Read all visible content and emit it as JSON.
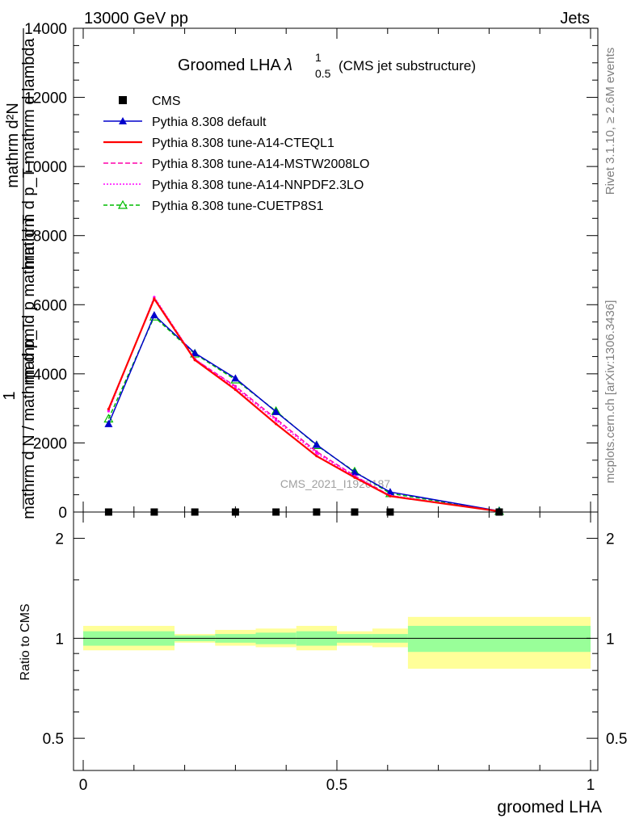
{
  "header": {
    "left": "13000 GeV pp",
    "right": "Jets"
  },
  "side_labels": {
    "rivet": "Rivet 3.1.10, ≥ 2.6M events",
    "mcplots": "mcplots.cern.ch [arXiv:1306.3436]"
  },
  "colors": {
    "cms": "#000000",
    "pythia_default": "#0000cc",
    "a14_cteql1": "#ff0000",
    "a14_mstw2008lo": "#ff00aa",
    "a14_nnpdf23lo": "#ff00ff",
    "cuetp8s1": "#00bb00",
    "band_inner": "#99ff99",
    "band_outer": "#ffff99"
  },
  "chart_data": [
    {
      "type": "line",
      "title": "Groomed LHA",
      "title_symbol": "λ",
      "title_sup": "1",
      "title_sub": "0.5",
      "title_suffix": "(CMS jet substructure)",
      "ylabel_numerator": "mathrm d²N",
      "ylabel_numerator_2": "mathrm d p_T mathrm d lambda",
      "ylabel_fraction_num": "1",
      "ylabel_denominator": "mathrm d N / mathrm d p_T",
      "ylabel_den_2": "mathrm d p mathrm d T",
      "watermark": "CMS_2021_I1920187",
      "xlim": [
        0,
        1
      ],
      "ylim": [
        0,
        14000
      ],
      "yticks": [
        0,
        2000,
        4000,
        6000,
        8000,
        10000,
        12000,
        14000
      ],
      "ytick_labels": [
        "0",
        "2000",
        "4000",
        "6000",
        "8000",
        "10000",
        "12000",
        "14000"
      ],
      "legend_position": "top-left",
      "x": [
        0.05,
        0.14,
        0.22,
        0.3,
        0.38,
        0.46,
        0.535,
        0.605,
        0.82
      ],
      "series": [
        {
          "name": "CMS",
          "style": "marker-square",
          "values": [
            0,
            0,
            0,
            0,
            0,
            0,
            0,
            0,
            0
          ]
        },
        {
          "name": "Pythia 8.308 default",
          "style": "line-triangle",
          "values": [
            2550,
            5700,
            4600,
            3870,
            2900,
            1950,
            1150,
            580,
            30
          ]
        },
        {
          "name": "Pythia 8.308 tune-A14-CTEQL1",
          "style": "solid",
          "values": [
            2980,
            6170,
            4400,
            3540,
            2550,
            1620,
            1000,
            460,
            20
          ]
        },
        {
          "name": "Pythia 8.308 tune-A14-MSTW2008LO",
          "style": "dashed",
          "values": [
            2950,
            6200,
            4420,
            3640,
            2700,
            1750,
            1050,
            470,
            20
          ]
        },
        {
          "name": "Pythia 8.308 tune-A14-NNPDF2.3LO",
          "style": "dotted",
          "values": [
            2920,
            6220,
            4430,
            3600,
            2650,
            1700,
            1030,
            480,
            20
          ]
        },
        {
          "name": "Pythia 8.308 tune-CUETP8S1",
          "style": "dashed-triangle",
          "values": [
            2700,
            5650,
            4580,
            3830,
            2920,
            1930,
            1170,
            540,
            25
          ]
        }
      ]
    },
    {
      "type": "area",
      "ylabel": "Ratio to CMS",
      "xlabel": "groomed LHA",
      "xlim": [
        0,
        1
      ],
      "ylim": [
        0.4,
        2.4
      ],
      "xticks": [
        0,
        0.5,
        1
      ],
      "xtick_labels": [
        "0",
        "0.5",
        "1"
      ],
      "yticks": [
        0.5,
        1,
        2
      ],
      "ytick_labels": [
        "0.5",
        "1",
        "2"
      ],
      "reference_line": 1,
      "bands": [
        {
          "xlo": 0.0,
          "xhi": 0.18,
          "inner": [
            0.95,
            1.05
          ],
          "outer": [
            0.92,
            1.09
          ]
        },
        {
          "xlo": 0.18,
          "xhi": 0.26,
          "inner": [
            0.98,
            1.02
          ],
          "outer": [
            0.97,
            1.03
          ]
        },
        {
          "xlo": 0.26,
          "xhi": 0.34,
          "inner": [
            0.97,
            1.03
          ],
          "outer": [
            0.95,
            1.06
          ]
        },
        {
          "xlo": 0.34,
          "xhi": 0.42,
          "inner": [
            0.96,
            1.04
          ],
          "outer": [
            0.94,
            1.07
          ]
        },
        {
          "xlo": 0.42,
          "xhi": 0.5,
          "inner": [
            0.95,
            1.05
          ],
          "outer": [
            0.92,
            1.09
          ]
        },
        {
          "xlo": 0.5,
          "xhi": 0.57,
          "inner": [
            0.97,
            1.03
          ],
          "outer": [
            0.95,
            1.05
          ]
        },
        {
          "xlo": 0.57,
          "xhi": 0.64,
          "inner": [
            0.97,
            1.03
          ],
          "outer": [
            0.94,
            1.07
          ]
        },
        {
          "xlo": 0.64,
          "xhi": 1.0,
          "inner": [
            0.91,
            1.09
          ],
          "outer": [
            0.81,
            1.16
          ]
        }
      ]
    }
  ]
}
